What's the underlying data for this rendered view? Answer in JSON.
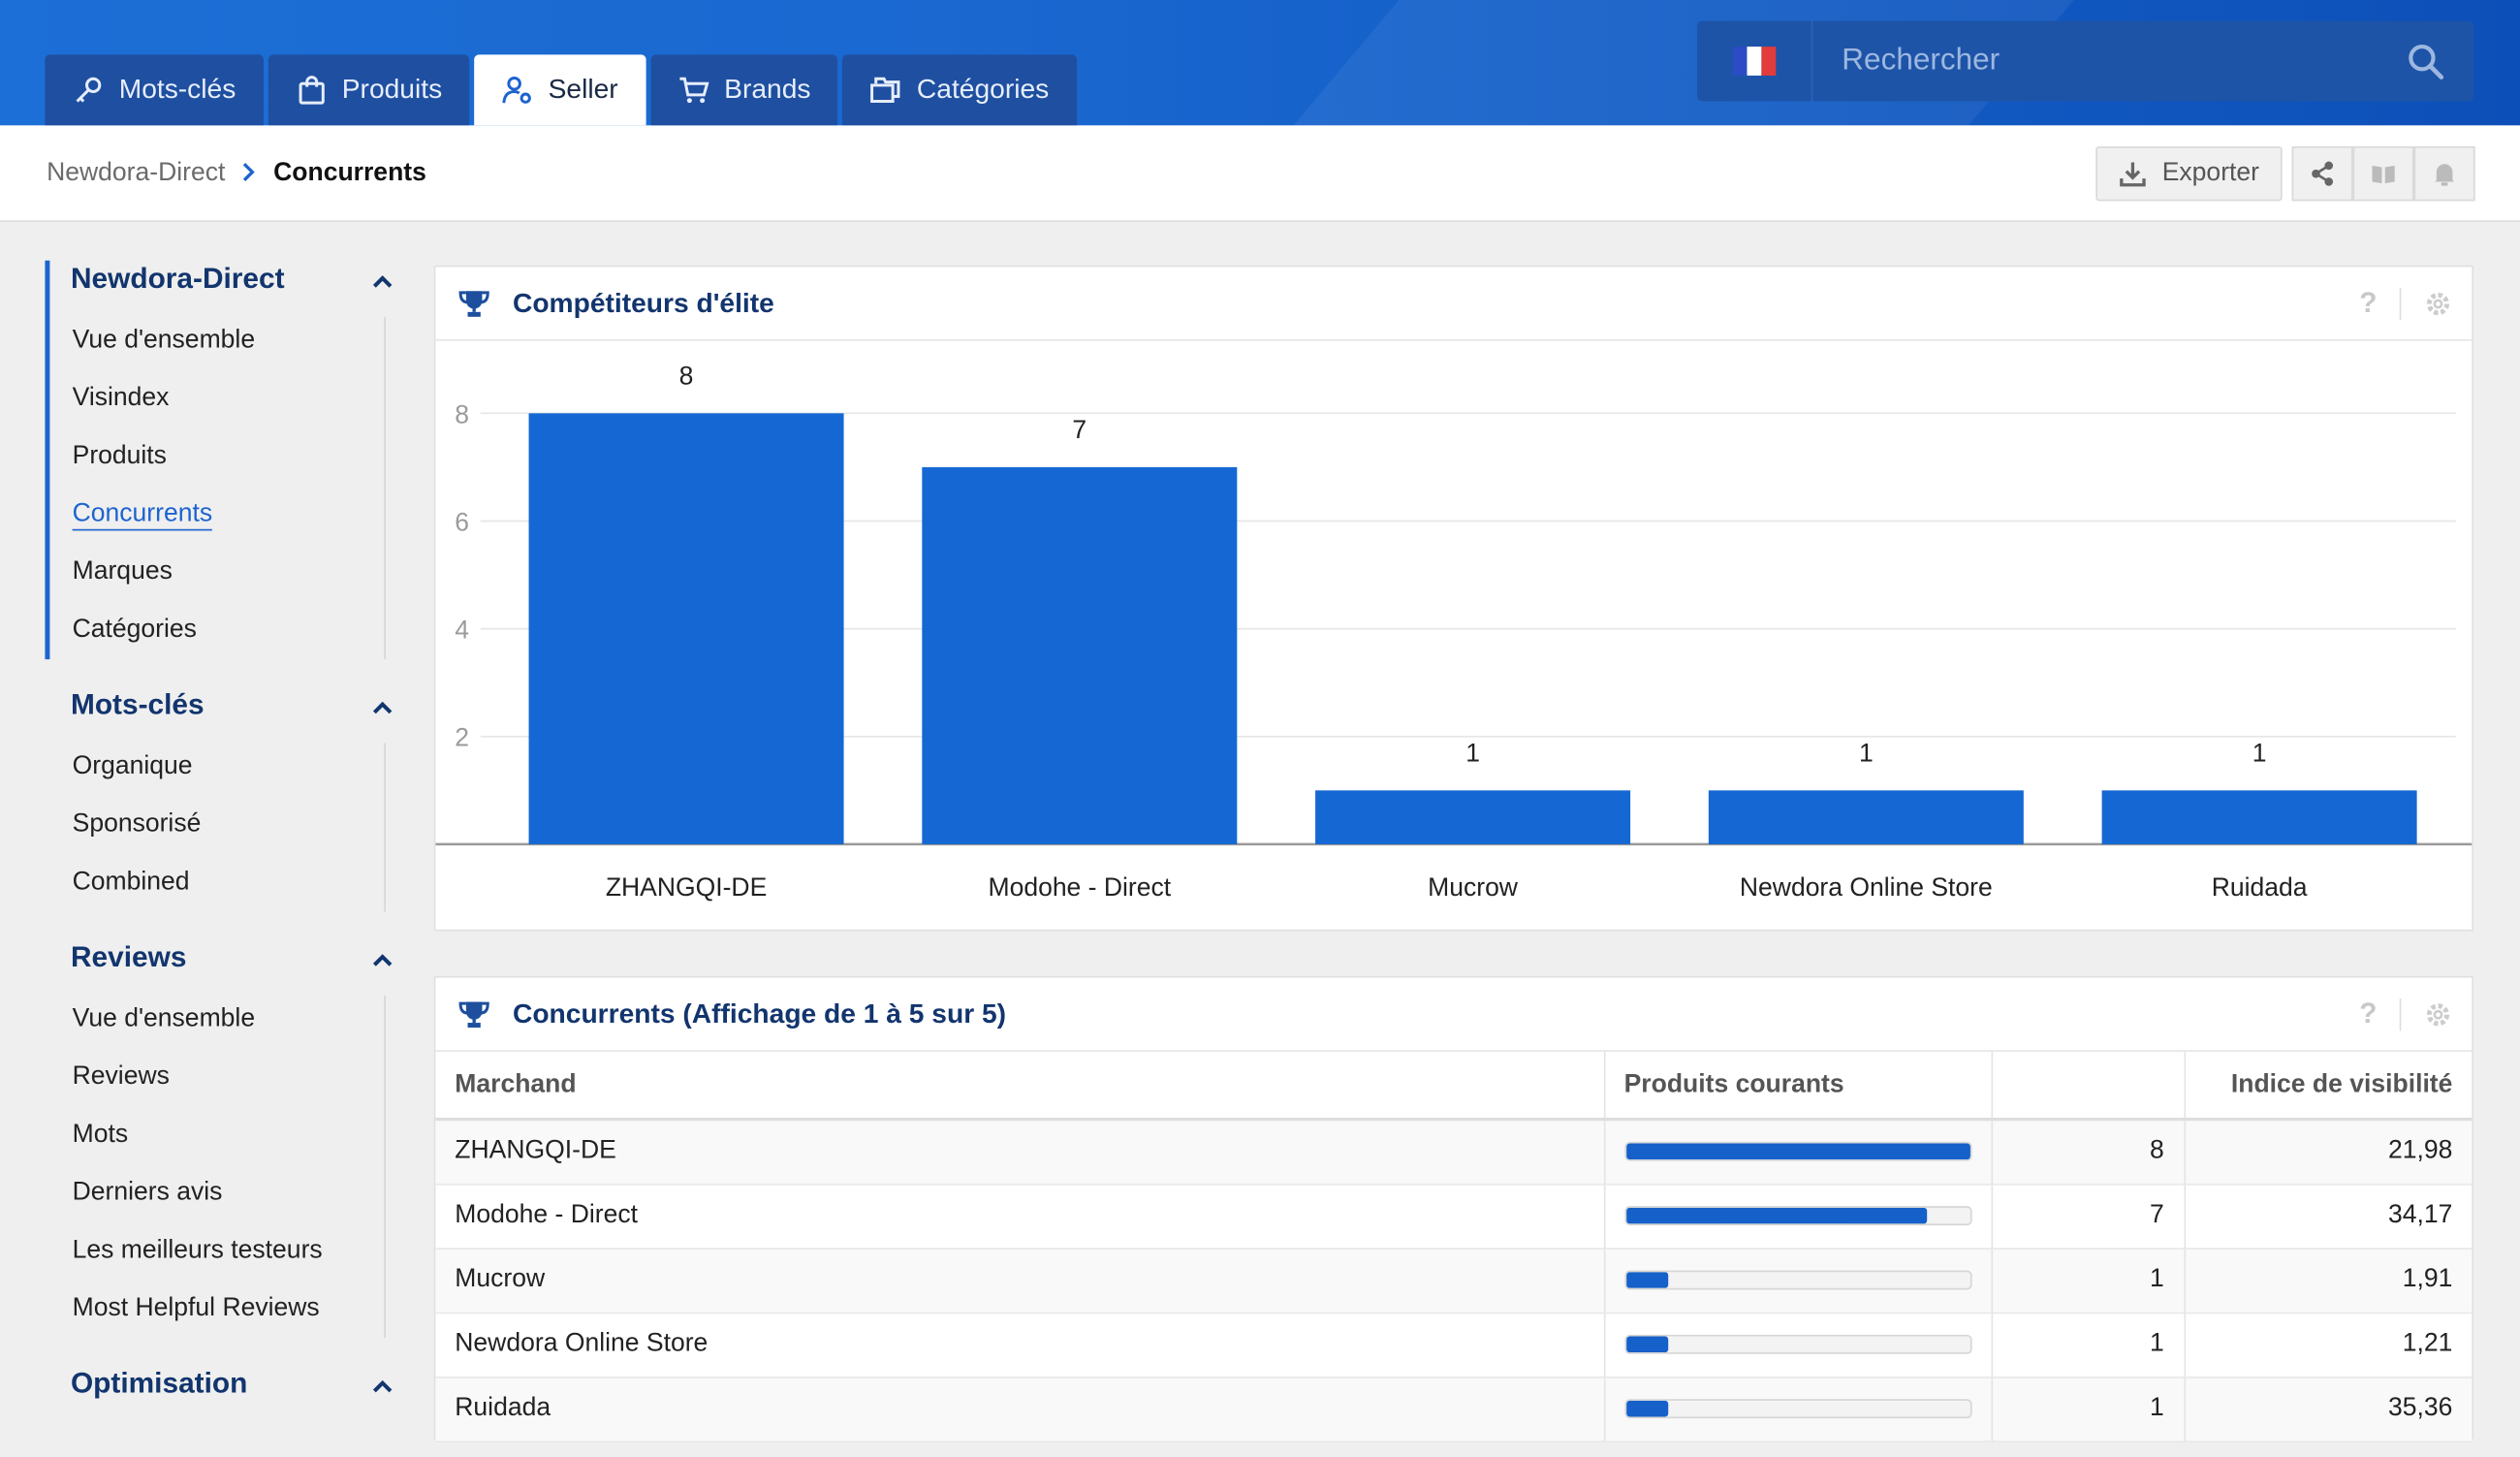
{
  "tabs": [
    {
      "label": "Mots-clés",
      "icon": "key-icon",
      "active": false
    },
    {
      "label": "Produits",
      "icon": "shopping-bag-icon",
      "active": false
    },
    {
      "label": "Seller",
      "icon": "user-settings-icon",
      "active": true
    },
    {
      "label": "Brands",
      "icon": "cart-icon",
      "active": false
    },
    {
      "label": "Catégories",
      "icon": "folders-icon",
      "active": false
    }
  ],
  "search": {
    "placeholder": "Rechercher",
    "flag": "fr-flag-icon"
  },
  "breadcrumb": {
    "parent": "Newdora-Direct",
    "current": "Concurrents"
  },
  "actions": {
    "export_label": "Exporter"
  },
  "sidebar": [
    {
      "title": "Newdora-Direct",
      "items": [
        "Vue d'ensemble",
        "Visindex",
        "Produits",
        "Concurrents",
        "Marques",
        "Catégories"
      ],
      "active_index": 3
    },
    {
      "title": "Mots-clés",
      "items": [
        "Organique",
        "Sponsorisé",
        "Combined"
      ]
    },
    {
      "title": "Reviews",
      "items": [
        "Vue d'ensemble",
        "Reviews",
        "Mots",
        "Derniers avis",
        "Les meilleurs testeurs",
        "Most Helpful Reviews"
      ]
    },
    {
      "title": "Optimisation",
      "items": []
    }
  ],
  "chart_panel": {
    "title": "Compétiteurs d'élite"
  },
  "chart_data": {
    "type": "bar",
    "categories": [
      "ZHANGQI-DE",
      "Modohe - Direct",
      "Mucrow",
      "Newdora Online Store",
      "Ruidada"
    ],
    "values": [
      8,
      7,
      1,
      1,
      1
    ],
    "yticks": [
      2,
      4,
      6,
      8
    ],
    "ylim": [
      0,
      8
    ],
    "grid": true,
    "bar_color": "#1568d3"
  },
  "table_panel": {
    "title": "Concurrents (Affichage de 1 à 5 sur 5)",
    "columns": [
      "Marchand",
      "Produits courants",
      "",
      "Indice de visibilité"
    ],
    "rows": [
      {
        "merchant": "ZHANGQI-DE",
        "products": "8",
        "share": 1.0,
        "visibility": "21,98"
      },
      {
        "merchant": "Modohe - Direct",
        "products": "7",
        "share": 0.875,
        "visibility": "34,17"
      },
      {
        "merchant": "Mucrow",
        "products": "1",
        "share": 0.125,
        "visibility": "1,91"
      },
      {
        "merchant": "Newdora Online Store",
        "products": "1",
        "share": 0.125,
        "visibility": "1,21"
      },
      {
        "merchant": "Ruidada",
        "products": "1",
        "share": 0.125,
        "visibility": "35,36"
      }
    ]
  },
  "colors": {
    "brand": "#1d63cf",
    "nav_dark": "#12356e",
    "bar": "#1560c9"
  }
}
